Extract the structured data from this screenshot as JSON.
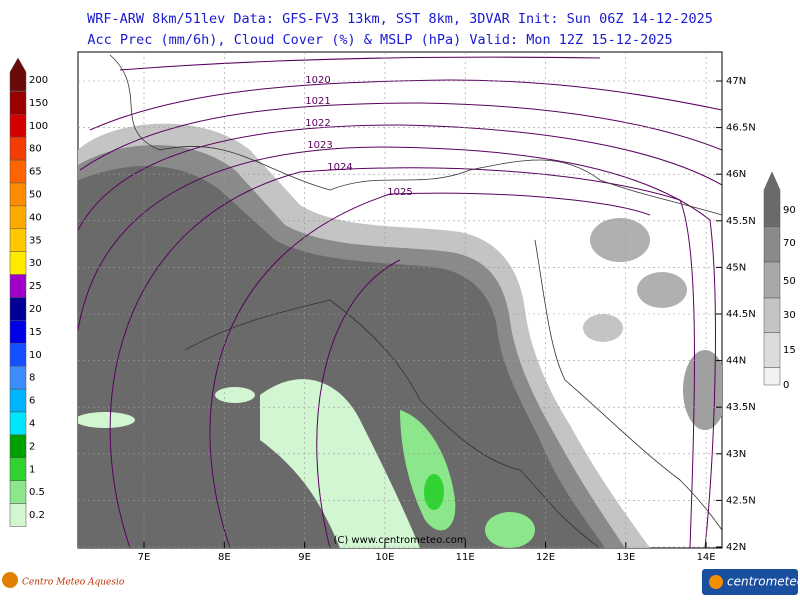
{
  "header": {
    "line1": "WRF-ARW 8km/51lev  Data: GFS-FV3 13km, SST 8km, 3DVAR  Init: Sun 06Z 14-12-2025",
    "line2": "Acc Prec (mm/6h), Cloud Cover (%) & MSLP (hPa)  Valid: Mon 12Z 15-12-2025"
  },
  "precip_legend": [
    {
      "label": "200",
      "color": "#6a0a0a"
    },
    {
      "label": "150",
      "color": "#9b0000"
    },
    {
      "label": "100",
      "color": "#d40000"
    },
    {
      "label": "80",
      "color": "#f23c00"
    },
    {
      "label": "65",
      "color": "#ff6400"
    },
    {
      "label": "50",
      "color": "#ff8c00"
    },
    {
      "label": "40",
      "color": "#ffaa00"
    },
    {
      "label": "35",
      "color": "#ffc800"
    },
    {
      "label": "30",
      "color": "#ffeb00"
    },
    {
      "label": "25",
      "color": "#a000c8"
    },
    {
      "label": "20",
      "color": "#000096"
    },
    {
      "label": "15",
      "color": "#0000e6"
    },
    {
      "label": "10",
      "color": "#1450ff"
    },
    {
      "label": "8",
      "color": "#3c8cff"
    },
    {
      "label": "6",
      "color": "#00b4ff"
    },
    {
      "label": "4",
      "color": "#00e6ff"
    },
    {
      "label": "2",
      "color": "#00a000"
    },
    {
      "label": "1",
      "color": "#32d232"
    },
    {
      "label": "0.5",
      "color": "#8ce68c"
    },
    {
      "label": "0.2",
      "color": "#d2f5d2"
    }
  ],
  "cloud_legend": [
    {
      "label": "90",
      "color": "#6a6a6a"
    },
    {
      "label": "70",
      "color": "#8a8a8a"
    },
    {
      "label": "50",
      "color": "#a8a8a8"
    },
    {
      "label": "30",
      "color": "#c4c4c4"
    },
    {
      "label": "15",
      "color": "#dcdcdc"
    },
    {
      "label": "0",
      "color": "#f2f2f2"
    }
  ],
  "map": {
    "lat_labels": [
      "47N",
      "46.5N",
      "46N",
      "45.5N",
      "45N",
      "44.5N",
      "44N",
      "43.5N",
      "43N",
      "42.5N",
      "42N"
    ],
    "lon_labels": [
      "7E",
      "8E",
      "9E",
      "10E",
      "11E",
      "12E",
      "13E",
      "14E"
    ],
    "isobar_labels": [
      "1020",
      "1021",
      "1022",
      "1023",
      "1024",
      "1025"
    ],
    "copyright": "(C) www.centrometeo.com"
  },
  "footer": {
    "left_logo": "Centro Meteo Aquesio",
    "right_logo": "centrometeo"
  }
}
